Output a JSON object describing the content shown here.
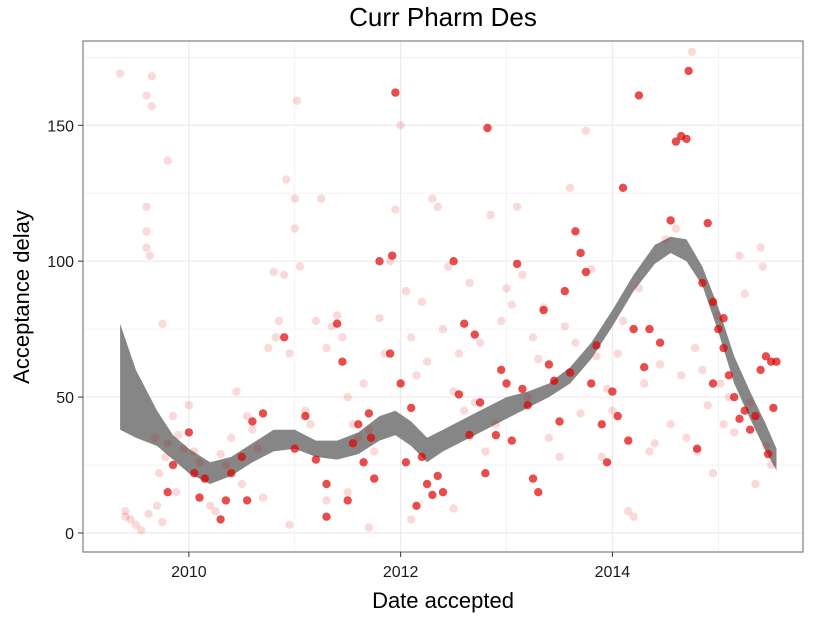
{
  "chart_data": {
    "type": "scatter",
    "title": "Curr Pharm Des",
    "xlabel": "Date accepted",
    "ylabel": "Acceptance delay",
    "xlim": [
      2009.0,
      2015.8
    ],
    "ylim": [
      -7,
      181
    ],
    "x_ticks": [
      2010,
      2012,
      2014
    ],
    "y_ticks": [
      0,
      50,
      100,
      150
    ],
    "grid": true,
    "legend": "none",
    "colors": {
      "point": "#e00000",
      "band": "#808080",
      "panel_border": "#7f7f7f",
      "grid": "#ebebeb"
    },
    "series": [
      {
        "style": "faint",
        "opacity": 0.15,
        "points": [
          [
            2009.35,
            169
          ],
          [
            2009.6,
            161
          ],
          [
            2009.65,
            168
          ],
          [
            2009.65,
            157
          ],
          [
            2009.8,
            137
          ],
          [
            2009.6,
            120
          ],
          [
            2009.6,
            111
          ],
          [
            2009.6,
            105
          ],
          [
            2009.63,
            102
          ],
          [
            2009.75,
            77
          ],
          [
            2009.4,
            8
          ],
          [
            2009.4,
            6
          ],
          [
            2009.45,
            5
          ],
          [
            2009.5,
            3
          ],
          [
            2009.55,
            1
          ],
          [
            2009.62,
            7
          ],
          [
            2009.7,
            10
          ],
          [
            2009.75,
            4
          ],
          [
            2009.78,
            28
          ],
          [
            2009.8,
            33
          ],
          [
            2009.85,
            43
          ],
          [
            2009.9,
            36
          ],
          [
            2009.95,
            31
          ],
          [
            2009.68,
            35
          ],
          [
            2009.72,
            22
          ],
          [
            2009.88,
            15
          ],
          [
            2010.0,
            47
          ],
          [
            2010.05,
            30
          ],
          [
            2010.1,
            26
          ],
          [
            2010.15,
            20
          ],
          [
            2010.2,
            10
          ],
          [
            2010.25,
            8
          ],
          [
            2010.3,
            29
          ],
          [
            2010.35,
            25
          ],
          [
            2010.4,
            35
          ],
          [
            2010.45,
            52
          ],
          [
            2010.5,
            18
          ],
          [
            2010.55,
            43
          ],
          [
            2010.6,
            38
          ],
          [
            2010.65,
            31
          ],
          [
            2010.7,
            13
          ],
          [
            2010.75,
            68
          ],
          [
            2010.8,
            96
          ],
          [
            2010.82,
            72
          ],
          [
            2010.85,
            78
          ],
          [
            2010.9,
            95
          ],
          [
            2010.92,
            130
          ],
          [
            2010.95,
            66
          ],
          [
            2011.0,
            112
          ],
          [
            2011.0,
            123
          ],
          [
            2011.05,
            98
          ],
          [
            2011.02,
            159
          ],
          [
            2011.1,
            45
          ],
          [
            2011.15,
            40
          ],
          [
            2011.2,
            78
          ],
          [
            2011.25,
            123
          ],
          [
            2011.3,
            68
          ],
          [
            2011.35,
            76
          ],
          [
            2011.4,
            80
          ],
          [
            2011.45,
            72
          ],
          [
            2011.5,
            50
          ],
          [
            2011.55,
            40
          ],
          [
            2011.6,
            35
          ],
          [
            2011.65,
            55
          ],
          [
            2011.7,
            38
          ],
          [
            2011.75,
            30
          ],
          [
            2011.8,
            79
          ],
          [
            2011.85,
            66
          ],
          [
            2011.9,
            100
          ],
          [
            2011.95,
            119
          ],
          [
            2012.0,
            150
          ],
          [
            2012.05,
            89
          ],
          [
            2012.1,
            72
          ],
          [
            2012.15,
            58
          ],
          [
            2012.2,
            85
          ],
          [
            2012.25,
            63
          ],
          [
            2012.3,
            123
          ],
          [
            2012.35,
            120
          ],
          [
            2012.4,
            75
          ],
          [
            2012.45,
            98
          ],
          [
            2012.5,
            52
          ],
          [
            2012.55,
            66
          ],
          [
            2012.6,
            45
          ],
          [
            2012.65,
            92
          ],
          [
            2012.7,
            48
          ],
          [
            2012.75,
            70
          ],
          [
            2012.8,
            30
          ],
          [
            2012.85,
            117
          ],
          [
            2012.9,
            40
          ],
          [
            2012.95,
            78
          ],
          [
            2013.0,
            90
          ],
          [
            2013.05,
            84
          ],
          [
            2013.1,
            120
          ],
          [
            2013.15,
            95
          ],
          [
            2013.2,
            50
          ],
          [
            2013.25,
            72
          ],
          [
            2013.3,
            64
          ],
          [
            2013.35,
            83
          ],
          [
            2013.4,
            35
          ],
          [
            2013.45,
            56
          ],
          [
            2013.5,
            28
          ],
          [
            2013.55,
            76
          ],
          [
            2013.6,
            127
          ],
          [
            2013.65,
            70
          ],
          [
            2013.7,
            44
          ],
          [
            2013.75,
            148
          ],
          [
            2013.8,
            97
          ],
          [
            2013.85,
            65
          ],
          [
            2013.9,
            28
          ],
          [
            2013.95,
            53
          ],
          [
            2014.0,
            45
          ],
          [
            2014.05,
            66
          ],
          [
            2014.1,
            78
          ],
          [
            2014.15,
            8
          ],
          [
            2014.2,
            6
          ],
          [
            2014.25,
            90
          ],
          [
            2014.3,
            55
          ],
          [
            2014.35,
            30
          ],
          [
            2014.4,
            33
          ],
          [
            2014.45,
            62
          ],
          [
            2014.5,
            108
          ],
          [
            2014.55,
            40
          ],
          [
            2014.6,
            112
          ],
          [
            2014.65,
            58
          ],
          [
            2014.7,
            35
          ],
          [
            2014.75,
            177
          ],
          [
            2014.78,
            68
          ],
          [
            2014.8,
            30
          ],
          [
            2014.85,
            60
          ],
          [
            2014.9,
            47
          ],
          [
            2014.95,
            22
          ],
          [
            2015.0,
            80
          ],
          [
            2015.02,
            55
          ],
          [
            2015.05,
            40
          ],
          [
            2015.1,
            50
          ],
          [
            2015.15,
            37
          ],
          [
            2015.2,
            102
          ],
          [
            2015.25,
            88
          ],
          [
            2015.3,
            48
          ],
          [
            2015.35,
            18
          ],
          [
            2015.4,
            105
          ],
          [
            2015.42,
            98
          ],
          [
            2015.45,
            32
          ],
          [
            2015.5,
            25
          ],
          [
            2010.95,
            3
          ],
          [
            2011.3,
            12
          ],
          [
            2011.5,
            15
          ],
          [
            2011.7,
            2
          ],
          [
            2012.1,
            5
          ],
          [
            2012.5,
            9
          ]
        ]
      },
      {
        "style": "strong",
        "opacity": 0.7,
        "points": [
          [
            2009.8,
            15
          ],
          [
            2009.85,
            25
          ],
          [
            2010.0,
            37
          ],
          [
            2010.05,
            22
          ],
          [
            2010.1,
            13
          ],
          [
            2010.15,
            20
          ],
          [
            2010.3,
            5
          ],
          [
            2010.35,
            12
          ],
          [
            2010.4,
            22
          ],
          [
            2010.5,
            28
          ],
          [
            2010.55,
            12
          ],
          [
            2010.6,
            41
          ],
          [
            2010.7,
            44
          ],
          [
            2010.9,
            72
          ],
          [
            2011.0,
            31
          ],
          [
            2011.1,
            43
          ],
          [
            2011.2,
            27
          ],
          [
            2011.3,
            18
          ],
          [
            2011.3,
            6
          ],
          [
            2011.4,
            77
          ],
          [
            2011.45,
            63
          ],
          [
            2011.5,
            12
          ],
          [
            2011.55,
            33
          ],
          [
            2011.6,
            40
          ],
          [
            2011.65,
            26
          ],
          [
            2011.7,
            44
          ],
          [
            2011.72,
            35
          ],
          [
            2011.75,
            20
          ],
          [
            2011.8,
            100
          ],
          [
            2011.9,
            66
          ],
          [
            2011.92,
            102
          ],
          [
            2011.95,
            162
          ],
          [
            2012.0,
            55
          ],
          [
            2012.05,
            26
          ],
          [
            2012.1,
            46
          ],
          [
            2012.15,
            10
          ],
          [
            2012.2,
            28
          ],
          [
            2012.25,
            18
          ],
          [
            2012.3,
            14
          ],
          [
            2012.35,
            21
          ],
          [
            2012.4,
            15
          ],
          [
            2012.5,
            100
          ],
          [
            2012.55,
            51
          ],
          [
            2012.6,
            77
          ],
          [
            2012.65,
            36
          ],
          [
            2012.7,
            73
          ],
          [
            2012.75,
            48
          ],
          [
            2012.8,
            22
          ],
          [
            2012.82,
            149
          ],
          [
            2012.9,
            36
          ],
          [
            2012.95,
            60
          ],
          [
            2013.0,
            55
          ],
          [
            2013.05,
            34
          ],
          [
            2013.1,
            99
          ],
          [
            2013.15,
            53
          ],
          [
            2013.2,
            47
          ],
          [
            2013.25,
            20
          ],
          [
            2013.3,
            15
          ],
          [
            2013.35,
            82
          ],
          [
            2013.4,
            62
          ],
          [
            2013.45,
            56
          ],
          [
            2013.5,
            41
          ],
          [
            2013.55,
            89
          ],
          [
            2013.6,
            59
          ],
          [
            2013.65,
            111
          ],
          [
            2013.7,
            103
          ],
          [
            2013.75,
            96
          ],
          [
            2013.8,
            55
          ],
          [
            2013.85,
            69
          ],
          [
            2013.9,
            40
          ],
          [
            2013.95,
            26
          ],
          [
            2014.0,
            52
          ],
          [
            2014.05,
            43
          ],
          [
            2014.1,
            127
          ],
          [
            2014.15,
            34
          ],
          [
            2014.2,
            75
          ],
          [
            2014.25,
            161
          ],
          [
            2014.3,
            61
          ],
          [
            2014.35,
            75
          ],
          [
            2014.45,
            70
          ],
          [
            2014.55,
            115
          ],
          [
            2014.6,
            144
          ],
          [
            2014.65,
            146
          ],
          [
            2014.7,
            145
          ],
          [
            2014.72,
            170
          ],
          [
            2014.8,
            31
          ],
          [
            2014.85,
            92
          ],
          [
            2014.9,
            114
          ],
          [
            2014.95,
            85
          ],
          [
            2015.0,
            75
          ],
          [
            2015.05,
            79
          ],
          [
            2015.1,
            58
          ],
          [
            2015.15,
            50
          ],
          [
            2015.2,
            42
          ],
          [
            2015.25,
            45
          ],
          [
            2015.3,
            38
          ],
          [
            2015.35,
            43
          ],
          [
            2015.4,
            60
          ],
          [
            2015.45,
            65
          ],
          [
            2015.5,
            63
          ],
          [
            2015.52,
            46
          ],
          [
            2015.47,
            29
          ],
          [
            2015.55,
            63
          ],
          [
            2015.05,
            68
          ],
          [
            2014.95,
            55
          ]
        ]
      }
    ],
    "smooth_band": {
      "x": [
        2009.35,
        2009.5,
        2009.7,
        2009.85,
        2010.0,
        2010.2,
        2010.4,
        2010.6,
        2010.8,
        2011.0,
        2011.2,
        2011.4,
        2011.6,
        2011.8,
        2011.95,
        2012.1,
        2012.25,
        2012.4,
        2012.6,
        2012.8,
        2013.0,
        2013.2,
        2013.4,
        2013.6,
        2013.8,
        2014.0,
        2014.2,
        2014.4,
        2014.55,
        2014.7,
        2014.85,
        2015.0,
        2015.15,
        2015.3,
        2015.45,
        2015.55
      ],
      "upper": [
        77,
        60,
        45,
        36,
        31,
        26,
        28,
        33,
        38,
        38,
        34,
        34,
        37,
        43,
        45,
        41,
        35,
        38,
        42,
        46,
        50,
        52,
        55,
        61,
        70,
        82,
        95,
        106,
        109,
        108,
        98,
        83,
        65,
        52,
        40,
        31
      ],
      "lower": [
        38,
        35,
        32,
        27,
        22,
        18,
        21,
        26,
        30,
        31,
        28,
        27,
        29,
        34,
        36,
        32,
        26,
        30,
        34,
        38,
        42,
        46,
        50,
        55,
        64,
        76,
        89,
        99,
        103,
        100,
        91,
        74,
        55,
        42,
        30,
        23
      ]
    }
  }
}
